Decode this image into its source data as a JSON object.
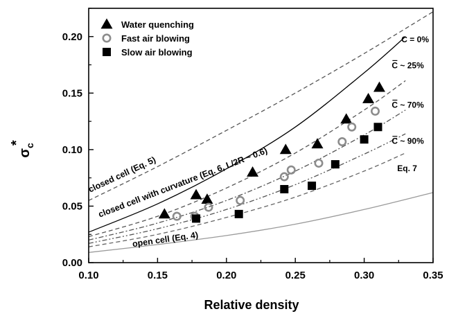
{
  "chart_data": {
    "type": "scatter",
    "xlabel": "Relative density",
    "ylabel": "σ",
    "ylabel_sub": "c",
    "ylabel_sup": "*",
    "xlim": [
      0.1,
      0.35
    ],
    "ylim": [
      0.0,
      0.225
    ],
    "xticks": [
      "0.10",
      "0.15",
      "0.20",
      "0.25",
      "0.30",
      "0.35"
    ],
    "yticks": [
      "0.00",
      "0.05",
      "0.10",
      "0.15",
      "0.20"
    ],
    "grid": false,
    "legend_position": "top-left",
    "series": [
      {
        "name": "Water quenching",
        "marker": "filled-triangle",
        "color": "#000000",
        "x": [
          0.155,
          0.178,
          0.186,
          0.219,
          0.243,
          0.266,
          0.287,
          0.303,
          0.311
        ],
        "y": [
          0.043,
          0.06,
          0.056,
          0.08,
          0.1,
          0.105,
          0.127,
          0.145,
          0.155
        ]
      },
      {
        "name": "Fast air blowing",
        "marker": "open-circle",
        "color": "#8c8c8c",
        "x": [
          0.164,
          0.177,
          0.187,
          0.21,
          0.242,
          0.247,
          0.267,
          0.284,
          0.291,
          0.308
        ],
        "y": [
          0.041,
          0.041,
          0.049,
          0.055,
          0.076,
          0.082,
          0.088,
          0.107,
          0.12,
          0.134
        ]
      },
      {
        "name": "Slow air blowing",
        "marker": "filled-square",
        "color": "#000000",
        "x": [
          0.178,
          0.209,
          0.242,
          0.262,
          0.279,
          0.3,
          0.31
        ],
        "y": [
          0.039,
          0.043,
          0.065,
          0.068,
          0.087,
          0.109,
          0.12
        ]
      }
    ],
    "curves": [
      {
        "label": "closed cell (Eq. 5)",
        "style": "dashed",
        "color": "#555555",
        "x": [
          0.1,
          0.15,
          0.2,
          0.25,
          0.3,
          0.35
        ],
        "y": [
          0.055,
          0.085,
          0.117,
          0.15,
          0.185,
          0.222
        ]
      },
      {
        "label": "closed cell with curvature (Eq. 6, L/2R ~ 0.6)",
        "style": "solid",
        "color": "#000000",
        "x": [
          0.1,
          0.15,
          0.2,
          0.25,
          0.3,
          0.33
        ],
        "y": [
          0.027,
          0.052,
          0.083,
          0.12,
          0.168,
          0.2
        ]
      },
      {
        "label": "C = 0%",
        "style": "dashed",
        "color": "#555555",
        "x": [
          0.1,
          0.15,
          0.2,
          0.25,
          0.3,
          0.33
        ],
        "y": [
          0.023,
          0.041,
          0.066,
          0.097,
          0.135,
          0.161
        ]
      },
      {
        "label": "C ~ 25%",
        "style": "dash-dot",
        "color": "#555555",
        "x": [
          0.1,
          0.15,
          0.2,
          0.25,
          0.3,
          0.33
        ],
        "y": [
          0.02,
          0.035,
          0.055,
          0.081,
          0.113,
          0.135
        ]
      },
      {
        "label": "C ~ 70%",
        "style": "dash-dot-dot",
        "color": "#555555",
        "x": [
          0.1,
          0.15,
          0.2,
          0.25,
          0.3,
          0.33
        ],
        "y": [
          0.017,
          0.03,
          0.047,
          0.069,
          0.096,
          0.114
        ]
      },
      {
        "label": "C ~ 90%",
        "style": "dashed",
        "color": "#666666",
        "x": [
          0.1,
          0.15,
          0.2,
          0.25,
          0.3,
          0.33
        ],
        "y": [
          0.014,
          0.025,
          0.04,
          0.058,
          0.081,
          0.097
        ]
      },
      {
        "label": "open cell (Eq. 4)",
        "style": "solid",
        "color": "#9a9a9a",
        "x": [
          0.1,
          0.15,
          0.2,
          0.25,
          0.3,
          0.35
        ],
        "y": [
          0.009,
          0.016,
          0.024,
          0.034,
          0.047,
          0.062
        ]
      }
    ],
    "annotations": [
      {
        "text": "C = 0%",
        "x": 0.327,
        "y": 0.195,
        "overbar": false
      },
      {
        "text": "C ~ 25%",
        "x": 0.32,
        "y": 0.172,
        "overbar": true
      },
      {
        "text": "C ~ 70%",
        "x": 0.32,
        "y": 0.137,
        "overbar": true
      },
      {
        "text": "C ~ 90%",
        "x": 0.32,
        "y": 0.105,
        "overbar": true
      },
      {
        "text": "Eq. 7",
        "x": 0.324,
        "y": 0.081,
        "overbar": false
      }
    ]
  }
}
